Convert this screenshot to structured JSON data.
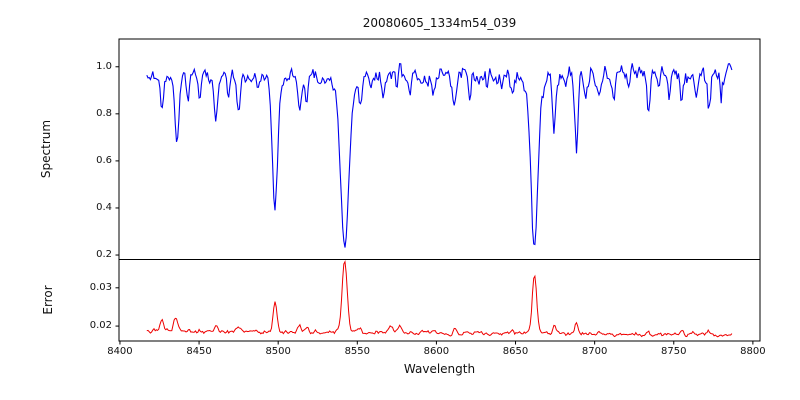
{
  "figure": {
    "title": "20080605_1334m54_039",
    "xlabel": "Wavelength",
    "background": "#ffffff",
    "frame_color": "#000000"
  },
  "chart_data": {
    "type": "line",
    "title": "20080605_1334m54_039",
    "xlabel": "Wavelength",
    "xlim": [
      8399.4,
      8804.5
    ],
    "x_data_range": [
      8417,
      8787
    ],
    "sample_step": 0.75,
    "xticks": [
      8400,
      8450,
      8500,
      8550,
      8600,
      8650,
      8700,
      8750,
      8800
    ],
    "grid": false,
    "legend": "none",
    "seed": 20080605,
    "panels": [
      {
        "name": "spectrum",
        "ylabel": "Spectrum",
        "yticks": [
          0.2,
          0.4,
          0.6,
          0.8,
          1.0
        ],
        "ytick_labels": [
          "0.2",
          "0.4",
          "0.6",
          "0.8",
          "1.0"
        ],
        "ylim": [
          0.181,
          1.118
        ],
        "line_color": "#0000ee",
        "continuum": 0.965,
        "noise_sigma_start": 0.012,
        "noise_sigma_end": 0.022,
        "value_max_clip": 1.035,
        "absorption_lines": [
          {
            "c": 8426.5,
            "d": 0.16,
            "w": 1.0
          },
          {
            "c": 8436.0,
            "d": 0.27,
            "w": 1.3
          },
          {
            "c": 8443.0,
            "d": 0.1,
            "w": 0.9
          },
          {
            "c": 8450.5,
            "d": 0.09,
            "w": 0.9
          },
          {
            "c": 8460.5,
            "d": 0.17,
            "w": 1.1
          },
          {
            "c": 8468.5,
            "d": 0.1,
            "w": 0.9
          },
          {
            "c": 8475.0,
            "d": 0.16,
            "w": 1.1
          },
          {
            "c": 8487.0,
            "d": 0.06,
            "w": 0.8
          },
          {
            "c": 8498.0,
            "d": 0.5,
            "w": 1.6
          },
          {
            "c": 8498.0,
            "d": 0.07,
            "w": 4.0
          },
          {
            "c": 8513.5,
            "d": 0.16,
            "w": 1.1
          },
          {
            "c": 8518.0,
            "d": 0.13,
            "w": 0.9
          },
          {
            "c": 8527.0,
            "d": 0.06,
            "w": 0.8
          },
          {
            "c": 8542.0,
            "d": 0.63,
            "w": 2.4
          },
          {
            "c": 8542.0,
            "d": 0.12,
            "w": 5.5
          },
          {
            "c": 8552.0,
            "d": 0.12,
            "w": 1.0
          },
          {
            "c": 8559.0,
            "d": 0.06,
            "w": 0.8
          },
          {
            "c": 8566.5,
            "d": 0.1,
            "w": 0.9
          },
          {
            "c": 8575.0,
            "d": 0.06,
            "w": 0.8
          },
          {
            "c": 8583.0,
            "d": 0.09,
            "w": 0.9
          },
          {
            "c": 8590.0,
            "d": 0.06,
            "w": 0.8
          },
          {
            "c": 8598.0,
            "d": 0.11,
            "w": 0.9
          },
          {
            "c": 8611.5,
            "d": 0.13,
            "w": 1.0
          },
          {
            "c": 8621.0,
            "d": 0.09,
            "w": 0.9
          },
          {
            "c": 8632.0,
            "d": 0.06,
            "w": 0.8
          },
          {
            "c": 8641.0,
            "d": 0.06,
            "w": 0.8
          },
          {
            "c": 8648.0,
            "d": 0.08,
            "w": 0.9
          },
          {
            "c": 8662.0,
            "d": 0.64,
            "w": 2.0
          },
          {
            "c": 8662.0,
            "d": 0.09,
            "w": 5.0
          },
          {
            "c": 8674.5,
            "d": 0.24,
            "w": 0.9
          },
          {
            "c": 8682.0,
            "d": 0.07,
            "w": 0.8
          },
          {
            "c": 8688.5,
            "d": 0.33,
            "w": 1.1
          },
          {
            "c": 8694.0,
            "d": 0.09,
            "w": 0.8
          },
          {
            "c": 8703.0,
            "d": 0.1,
            "w": 0.9
          },
          {
            "c": 8712.0,
            "d": 0.09,
            "w": 0.8
          },
          {
            "c": 8722.0,
            "d": 0.07,
            "w": 0.8
          },
          {
            "c": 8734.0,
            "d": 0.12,
            "w": 0.9
          },
          {
            "c": 8741.0,
            "d": 0.07,
            "w": 0.8
          },
          {
            "c": 8747.0,
            "d": 0.09,
            "w": 0.8
          },
          {
            "c": 8755.0,
            "d": 0.13,
            "w": 0.9
          },
          {
            "c": 8764.0,
            "d": 0.1,
            "w": 0.8
          },
          {
            "c": 8772.0,
            "d": 0.14,
            "w": 0.9
          },
          {
            "c": 8780.0,
            "d": 0.1,
            "w": 0.8
          }
        ]
      },
      {
        "name": "error",
        "ylabel": "Error",
        "yticks": [
          0.02,
          0.03
        ],
        "ytick_labels": [
          "0.02",
          "0.03"
        ],
        "ylim": [
          0.0161,
          0.0374
        ],
        "line_color": "#ee0000",
        "baseline_start": 0.0188,
        "baseline_end": 0.0177,
        "noise_sigma": 0.00025,
        "value_max_clip": 0.0372,
        "peaks": [
          {
            "c": 8426.5,
            "a": 0.0026,
            "w": 1.0
          },
          {
            "c": 8435.0,
            "a": 0.003,
            "w": 1.2
          },
          {
            "c": 8461.0,
            "a": 0.0012,
            "w": 1.0
          },
          {
            "c": 8475.0,
            "a": 0.0012,
            "w": 1.0
          },
          {
            "c": 8498.0,
            "a": 0.0075,
            "w": 1.2
          },
          {
            "c": 8513.5,
            "a": 0.0017,
            "w": 1.0
          },
          {
            "c": 8518.0,
            "a": 0.0011,
            "w": 0.9
          },
          {
            "c": 8542.0,
            "a": 0.0186,
            "w": 1.6
          },
          {
            "c": 8552.0,
            "a": 0.0009,
            "w": 0.9
          },
          {
            "c": 8571.0,
            "a": 0.0017,
            "w": 1.2
          },
          {
            "c": 8577.0,
            "a": 0.0014,
            "w": 1.0
          },
          {
            "c": 8598.0,
            "a": 0.0008,
            "w": 0.9
          },
          {
            "c": 8611.5,
            "a": 0.001,
            "w": 0.9
          },
          {
            "c": 8648.0,
            "a": 0.0007,
            "w": 0.8
          },
          {
            "c": 8662.0,
            "a": 0.015,
            "w": 1.4
          },
          {
            "c": 8674.5,
            "a": 0.0024,
            "w": 0.9
          },
          {
            "c": 8688.5,
            "a": 0.0029,
            "w": 1.0
          },
          {
            "c": 8703.0,
            "a": 0.0008,
            "w": 0.8
          },
          {
            "c": 8734.0,
            "a": 0.0009,
            "w": 0.8
          },
          {
            "c": 8755.0,
            "a": 0.0011,
            "w": 0.8
          },
          {
            "c": 8772.0,
            "a": 0.0011,
            "w": 0.8
          }
        ]
      }
    ]
  }
}
